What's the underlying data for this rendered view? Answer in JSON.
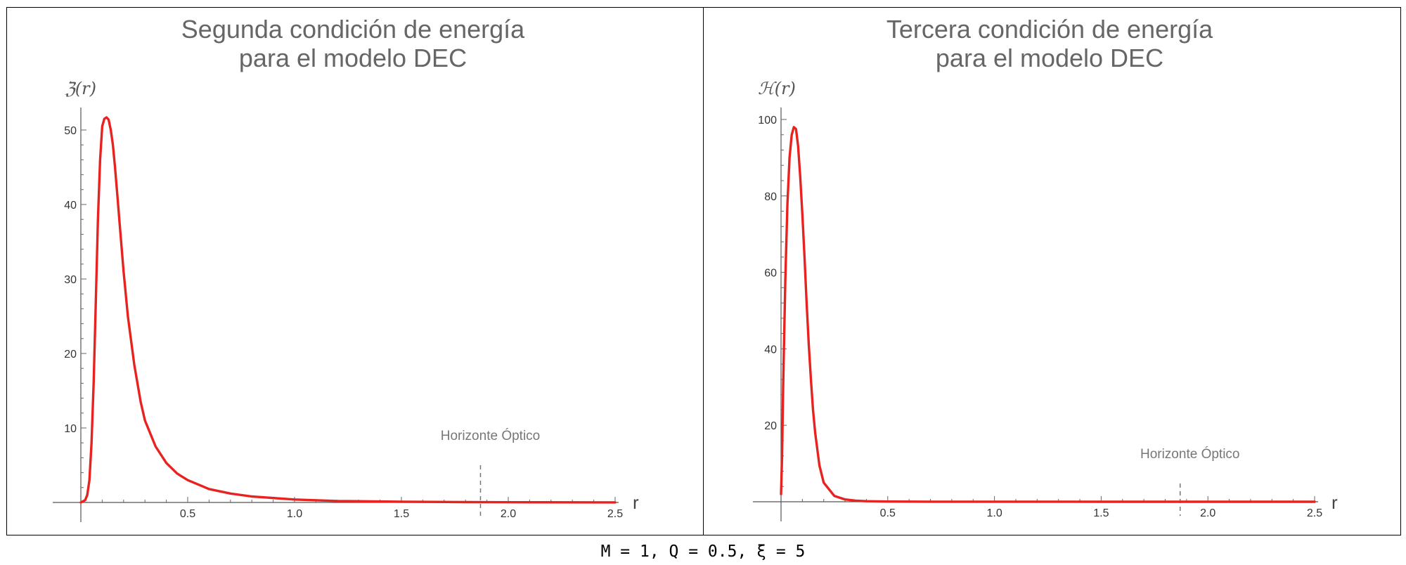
{
  "caption": "M = 1, Q = 0.5, ξ = 5",
  "colors": {
    "curve": "#e8231f",
    "annotation": "#777777",
    "title": "#666666"
  },
  "chart_data": [
    {
      "type": "line",
      "title": "Segunda condición de energía",
      "subtitle": "para el modelo DEC",
      "xlabel": "r",
      "ylabel": "ℨ(r)",
      "xlim": [
        0,
        2.5
      ],
      "ylim": [
        0,
        55
      ],
      "xticks": [
        0.5,
        1.0,
        1.5,
        2.0,
        2.5
      ],
      "xtick_labels": [
        "0.5",
        "1.0",
        "1.5",
        "2.0",
        "2.5"
      ],
      "yticks": [
        10,
        20,
        30,
        40,
        50
      ],
      "ytick_labels": [
        "10",
        "20",
        "30",
        "40",
        "50"
      ],
      "grid": false,
      "series": [
        {
          "x": [
            0,
            0.02,
            0.03,
            0.04,
            0.05,
            0.06,
            0.07,
            0.08,
            0.09,
            0.1,
            0.11,
            0.12,
            0.13,
            0.14,
            0.15,
            0.16,
            0.17,
            0.18,
            0.2,
            0.22,
            0.25,
            0.28,
            0.3,
            0.35,
            0.4,
            0.45,
            0.5,
            0.6,
            0.7,
            0.8,
            1.0,
            1.2,
            1.5,
            1.8,
            2.0,
            2.5
          ],
          "y": [
            0,
            0.3,
            1.0,
            3.0,
            8.0,
            16.0,
            27.0,
            38.0,
            46.0,
            50.5,
            51.5,
            51.7,
            51.4,
            50.0,
            48.0,
            45.0,
            41.5,
            38.0,
            31.0,
            25.0,
            18.5,
            13.5,
            11.0,
            7.5,
            5.3,
            3.9,
            3.0,
            1.8,
            1.2,
            0.8,
            0.4,
            0.2,
            0.1,
            0.05,
            0.03,
            0.01
          ]
        }
      ],
      "annotations": [
        {
          "text": "Horizonte Óptico",
          "x": 1.87,
          "type": "vline-dashed"
        }
      ]
    },
    {
      "type": "line",
      "title": "Tercera condición de energía",
      "subtitle": "para el modelo DEC",
      "xlabel": "r",
      "ylabel": "ℋ(r)",
      "xlim": [
        0,
        2.5
      ],
      "ylim": [
        0,
        100
      ],
      "xticks": [
        0.5,
        1.0,
        1.5,
        2.0,
        2.5
      ],
      "xtick_labels": [
        "0.5",
        "1.0",
        "1.5",
        "2.0",
        "2.5"
      ],
      "yticks": [
        20,
        40,
        60,
        80,
        100
      ],
      "ytick_labels": [
        "20",
        "40",
        "60",
        "80",
        "100"
      ],
      "grid": false,
      "series": [
        {
          "x": [
            0,
            0.005,
            0.01,
            0.02,
            0.03,
            0.04,
            0.05,
            0.06,
            0.07,
            0.08,
            0.09,
            0.1,
            0.11,
            0.12,
            0.13,
            0.14,
            0.15,
            0.16,
            0.18,
            0.2,
            0.25,
            0.3,
            0.35,
            0.4,
            0.5,
            0.7,
            1.0,
            1.5,
            2.0,
            2.5
          ],
          "y": [
            2.0,
            12.0,
            30.0,
            58.0,
            78.0,
            90.0,
            96.0,
            98.0,
            97.5,
            93.0,
            85.0,
            75.0,
            64.0,
            52.0,
            41.0,
            32.0,
            24.0,
            18.0,
            9.5,
            5.0,
            1.5,
            0.6,
            0.3,
            0.15,
            0.05,
            0.02,
            0.01,
            0.005,
            0.003,
            0.002
          ]
        }
      ],
      "annotations": [
        {
          "text": "Horizonte Óptico",
          "x": 1.87,
          "type": "vline-dashed"
        }
      ]
    }
  ]
}
